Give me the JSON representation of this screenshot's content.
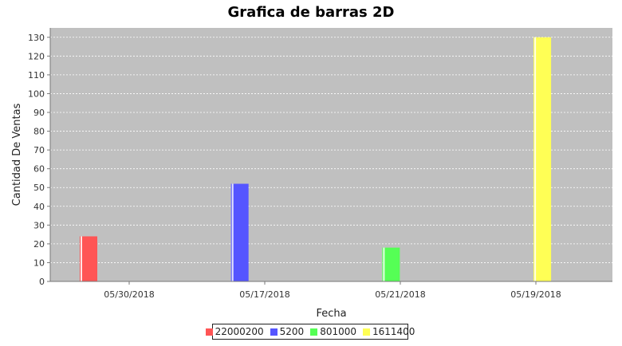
{
  "chart_data": {
    "type": "bar",
    "title": "Grafica de barras 2D",
    "xlabel": "Fecha",
    "ylabel": "Cantidad De Ventas",
    "categories": [
      "05/30/2018",
      "05/17/2018",
      "05/21/2018",
      "05/19/2018"
    ],
    "series": [
      {
        "name": "22000200",
        "color": "#ff5555",
        "values": [
          24,
          0,
          0,
          0
        ]
      },
      {
        "name": "5200",
        "color": "#5555ff",
        "values": [
          0,
          52,
          0,
          0
        ]
      },
      {
        "name": "801000",
        "color": "#55ff55",
        "values": [
          0,
          0,
          18,
          0
        ]
      },
      {
        "name": "1611400",
        "color": "#ffff55",
        "values": [
          0,
          0,
          0,
          130
        ]
      }
    ],
    "ylim": [
      0,
      135
    ],
    "yticks": [
      0,
      10,
      20,
      30,
      40,
      50,
      60,
      70,
      80,
      90,
      100,
      110,
      120,
      130
    ],
    "grid": true,
    "plot_background": "#c0c0c0",
    "legend_position": "bottom"
  }
}
